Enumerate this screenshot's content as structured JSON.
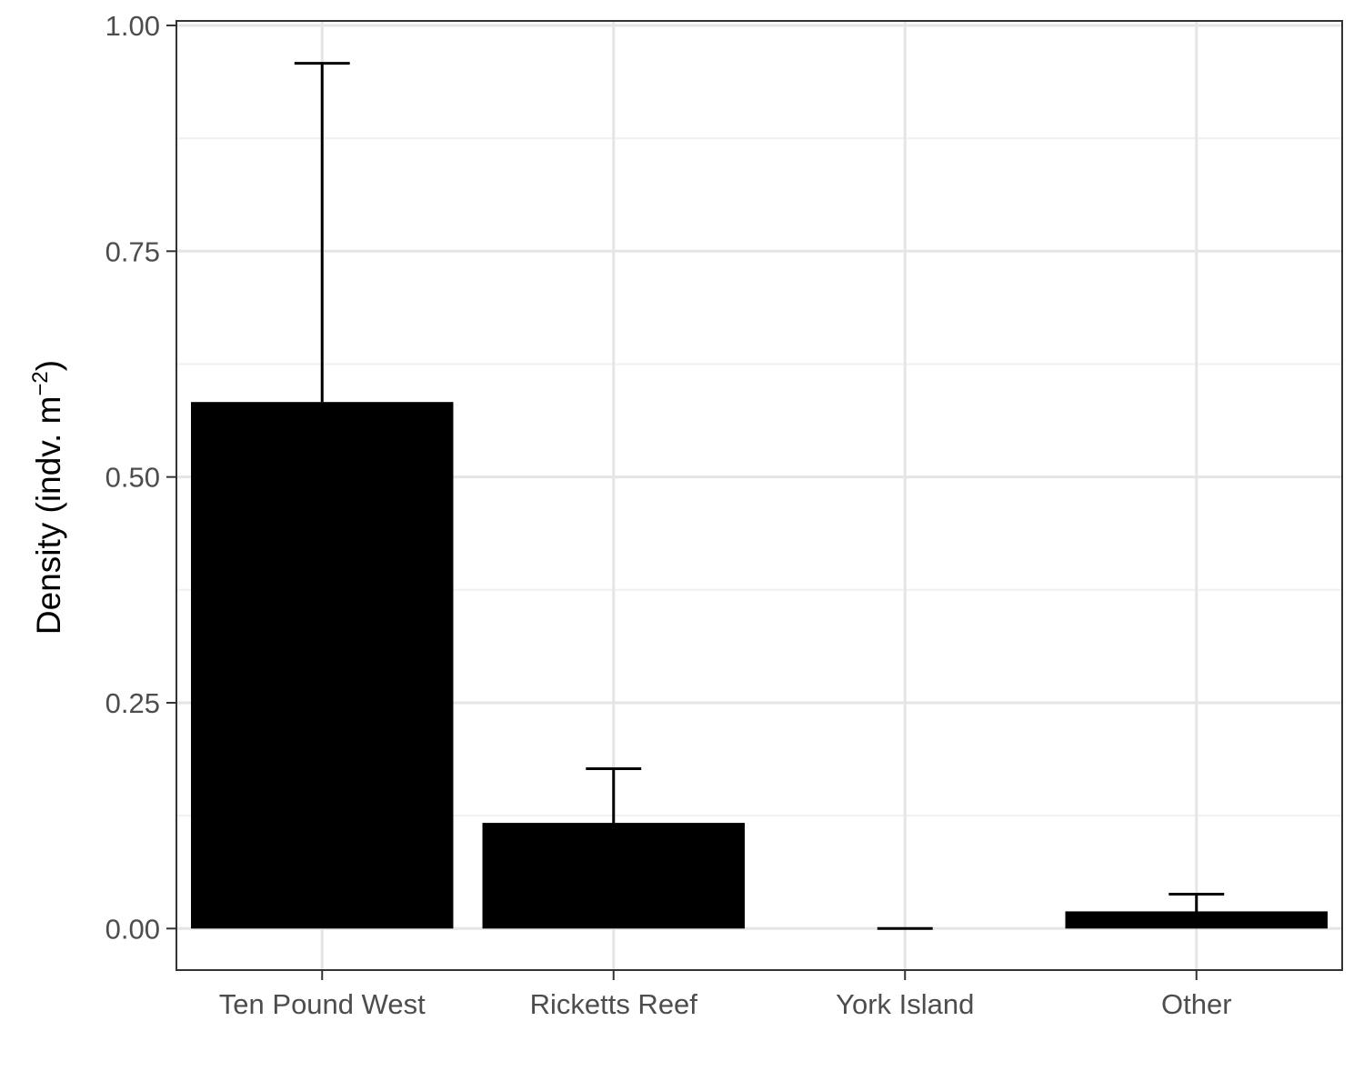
{
  "chart_data": {
    "type": "bar",
    "title": "",
    "xlabel": "",
    "ylabel": {
      "main": "Density",
      "unit_text": "indv. m",
      "unit_exponent": "−2"
    },
    "categories": [
      "Ten Pound West",
      "Ricketts Reef",
      "York Island",
      "Other"
    ],
    "values": [
      0.583,
      0.117,
      0.0,
      0.019
    ],
    "error_upper": [
      0.958,
      0.177,
      0.0,
      0.038
    ],
    "error_lower": [
      0.583,
      0.117,
      0.0,
      0.0
    ],
    "ylim": [
      -0.046,
      1.005
    ],
    "yticks": [
      0.0,
      0.25,
      0.5,
      0.75,
      1.0
    ],
    "ytick_labels": [
      "0.00",
      "0.25",
      "0.50",
      "0.75",
      "1.00"
    ],
    "grid": true,
    "legend": "none",
    "colors": {
      "bar": "#000000",
      "grid_major": "#e5e5e5",
      "grid_minor": "#f0f0f0",
      "panel_border": "#333333",
      "tick_text": "#4d4d4d"
    }
  }
}
